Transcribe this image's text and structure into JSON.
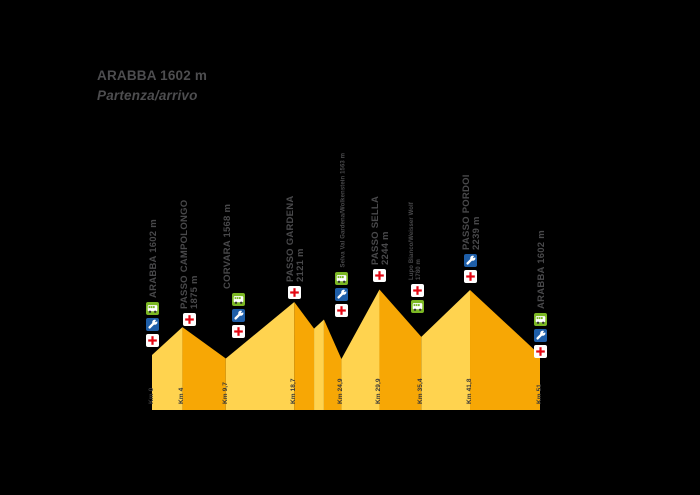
{
  "header": {
    "title": "ARABBA 1602 m",
    "subtitle": "Partenza/arrivo"
  },
  "colors": {
    "background": "#000000",
    "slope_up": "#FFD34F",
    "slope_down": "#F7A705",
    "label_text": "#49494b",
    "km_text": "#3a3a3a",
    "cross_red": "#E30613",
    "wrench_blue": "#1E5EA8",
    "bus_green": "#7CB824",
    "icon_white": "#FFFFFF",
    "wheel_dark": "#2F2F2F"
  },
  "chart_data": {
    "type": "area",
    "xlabel": "Km",
    "x_unit": "km",
    "xlim": [
      0,
      51
    ],
    "alt_unit": "m",
    "profile": [
      {
        "km": 0,
        "alt": 1602
      },
      {
        "km": 4,
        "alt": 1875
      },
      {
        "km": 9.7,
        "alt": 1568
      },
      {
        "km": 18.7,
        "alt": 2121
      },
      {
        "km": 21.3,
        "alt": 1860
      },
      {
        "km": 22.6,
        "alt": 1950
      },
      {
        "km": 24.9,
        "alt": 1563
      },
      {
        "km": 29.9,
        "alt": 2244
      },
      {
        "km": 35.4,
        "alt": 1780
      },
      {
        "km": 41.8,
        "alt": 2239
      },
      {
        "km": 51,
        "alt": 1602
      }
    ],
    "points": [
      {
        "id": "arabba-start",
        "lines": [
          "ARABBA 1602 m"
        ],
        "small": false,
        "km": 0,
        "km_label": "Km 0",
        "alt": 1602,
        "icons": [
          "bus",
          "wrench",
          "cross"
        ]
      },
      {
        "id": "passo-campolongo",
        "lines": [
          "PASSO CAMPOLONGO",
          "1875 m"
        ],
        "small": false,
        "km": 4,
        "km_label": "Km 4",
        "alt": 1875,
        "icons": [
          "cross"
        ]
      },
      {
        "id": "corvara",
        "lines": [
          "CORVARA 1568 m"
        ],
        "small": false,
        "km": 9.7,
        "km_label": "Km 9,7",
        "alt": 1568,
        "icons": [
          "bus",
          "wrench",
          "cross"
        ]
      },
      {
        "id": "passo-gardena",
        "lines": [
          "PASSO GARDENA",
          "2121 m"
        ],
        "small": false,
        "km": 18.7,
        "km_label": "Km 18,7",
        "alt": 2121,
        "icons": [
          "cross"
        ]
      },
      {
        "id": "selva",
        "lines": [
          "Selva Val Gardena/Wolkenstein 1563 m"
        ],
        "small": true,
        "km": 24.9,
        "km_label": "Km 24,9",
        "alt": 1563,
        "icons": [
          "bus",
          "wrench",
          "cross"
        ]
      },
      {
        "id": "passo-sella",
        "lines": [
          "PASSO SELLA",
          "2244 m"
        ],
        "small": false,
        "km": 29.9,
        "km_label": "Km 29,9",
        "alt": 2244,
        "icons": [
          "cross"
        ]
      },
      {
        "id": "lupo-bianco",
        "lines": [
          "Lupo Bianco/Weisser Wolf",
          "1780 m"
        ],
        "small": true,
        "km": 35.4,
        "km_label": "Km 35,4",
        "alt": 1780,
        "icons": [
          "cross",
          "bus"
        ]
      },
      {
        "id": "passo-pordoi",
        "lines": [
          "PASSO PORDOI",
          "2239 m"
        ],
        "small": false,
        "km": 41.8,
        "km_label": "Km 41,8",
        "alt": 2239,
        "icons": [
          "wrench",
          "cross"
        ]
      },
      {
        "id": "arabba-end",
        "lines": [
          "ARABBA 1602 m"
        ],
        "small": false,
        "km": 51,
        "km_label": "Km 51",
        "alt": 1602,
        "icons": [
          "bus",
          "wrench",
          "cross"
        ]
      }
    ]
  }
}
